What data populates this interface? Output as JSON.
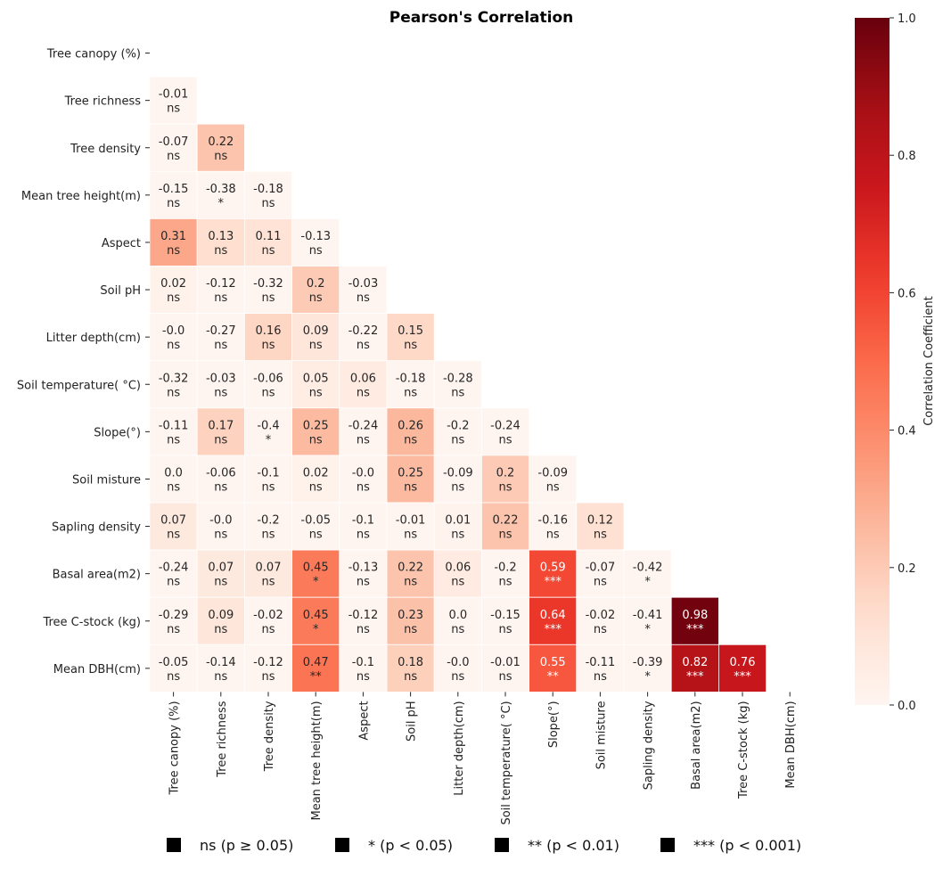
{
  "chart_data": {
    "type": "heatmap",
    "title": "Pearson's Correlation",
    "colorscale": "Reds",
    "colors": {
      "low": "#fff5f0",
      "high": "#67000d"
    },
    "variables": [
      "Tree canopy (%)",
      "Tree richness",
      "Tree density",
      "Mean tree height(m)",
      "Aspect",
      "Soil pH",
      "Litter depth(cm)",
      "Soil temperature( °C)",
      "Slope(°)",
      "Soil misture",
      "Sapling density",
      "Basal area(m2)",
      "Tree C-stock (kg)",
      "Mean DBH(cm)"
    ],
    "mask": "upper-triangle-and-diagonal",
    "values": [
      [],
      [
        "-0.01"
      ],
      [
        "-0.07",
        "0.22"
      ],
      [
        "-0.15",
        "-0.38",
        "-0.18"
      ],
      [
        "0.31",
        "0.13",
        "0.11",
        "-0.13"
      ],
      [
        "0.02",
        "-0.12",
        "-0.32",
        "0.2",
        "-0.03"
      ],
      [
        "-0.0",
        "-0.27",
        "0.16",
        "0.09",
        "-0.22",
        "0.15"
      ],
      [
        "-0.32",
        "-0.03",
        "-0.06",
        "0.05",
        "0.06",
        "-0.18",
        "-0.28"
      ],
      [
        "-0.11",
        "0.17",
        "-0.4",
        "0.25",
        "-0.24",
        "0.26",
        "-0.2",
        "-0.24"
      ],
      [
        "0.0",
        "-0.06",
        "-0.1",
        "0.02",
        "-0.0",
        "0.25",
        "-0.09",
        "0.2",
        "-0.09"
      ],
      [
        "0.07",
        "-0.0",
        "-0.2",
        "-0.05",
        "-0.1",
        "-0.01",
        "0.01",
        "0.22",
        "-0.16",
        "0.12"
      ],
      [
        "-0.24",
        "0.07",
        "0.07",
        "0.45",
        "-0.13",
        "0.22",
        "0.06",
        "-0.2",
        "0.59",
        "-0.07",
        "-0.42"
      ],
      [
        "-0.29",
        "0.09",
        "-0.02",
        "0.45",
        "-0.12",
        "0.23",
        "0.0",
        "-0.15",
        "0.64",
        "-0.02",
        "-0.41",
        "0.98"
      ],
      [
        "-0.05",
        "-0.14",
        "-0.12",
        "0.47",
        "-0.1",
        "0.18",
        "-0.0",
        "-0.01",
        "0.55",
        "-0.11",
        "-0.39",
        "0.82",
        "0.76"
      ]
    ],
    "significance": [
      [],
      [
        "ns"
      ],
      [
        "ns",
        "ns"
      ],
      [
        "ns",
        "*",
        "ns"
      ],
      [
        "ns",
        "ns",
        "ns",
        "ns"
      ],
      [
        "ns",
        "ns",
        "ns",
        "ns",
        "ns"
      ],
      [
        "ns",
        "ns",
        "ns",
        "ns",
        "ns",
        "ns"
      ],
      [
        "ns",
        "ns",
        "ns",
        "ns",
        "ns",
        "ns",
        "ns"
      ],
      [
        "ns",
        "ns",
        "*",
        "ns",
        "ns",
        "ns",
        "ns",
        "ns"
      ],
      [
        "ns",
        "ns",
        "ns",
        "ns",
        "ns",
        "ns",
        "ns",
        "ns",
        "ns"
      ],
      [
        "ns",
        "ns",
        "ns",
        "ns",
        "ns",
        "ns",
        "ns",
        "ns",
        "ns",
        "ns"
      ],
      [
        "ns",
        "ns",
        "ns",
        "*",
        "ns",
        "ns",
        "ns",
        "ns",
        "***",
        "ns",
        "*"
      ],
      [
        "ns",
        "ns",
        "ns",
        "*",
        "ns",
        "ns",
        "ns",
        "ns",
        "***",
        "ns",
        "*",
        "***"
      ],
      [
        "ns",
        "ns",
        "ns",
        "**",
        "ns",
        "ns",
        "ns",
        "ns",
        "**",
        "ns",
        "*",
        "***",
        "***"
      ]
    ],
    "colorbar": {
      "label": "Correlation Coefficient",
      "range": [
        0.0,
        1.0
      ],
      "ticks": [
        "0.0",
        "0.2",
        "0.4",
        "0.6",
        "0.8",
        "1.0"
      ]
    },
    "legend": {
      "placement": "bottom",
      "items": [
        "ns (p ≥ 0.05)",
        "* (p < 0.05)",
        "** (p < 0.01)",
        "*** (p < 0.001)"
      ]
    }
  }
}
